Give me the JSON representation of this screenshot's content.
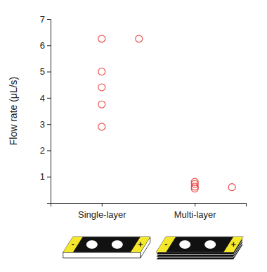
{
  "chart_data": {
    "type": "scatter",
    "y_label": "Flow rate (μL/s)",
    "x": [
      1,
      1,
      1,
      1,
      1,
      1.4,
      2,
      2,
      2,
      2,
      2.4
    ],
    "values": [
      6.25,
      5,
      4.4,
      3.75,
      2.9,
      6.25,
      0.8,
      0.72,
      0.62,
      0.55,
      0.6
    ],
    "xlim": [
      0.45,
      2.55
    ],
    "xticks": [
      {
        "value": 1,
        "label": "Single-layer"
      },
      {
        "value": 2,
        "label": "Multi-layer"
      }
    ],
    "ylim": [
      0,
      7
    ],
    "yticks": [
      1,
      2,
      3,
      4,
      5,
      6,
      7
    ],
    "color": "#e8423f",
    "marker": "circle-open",
    "annotations": [
      "-",
      "+"
    ]
  }
}
